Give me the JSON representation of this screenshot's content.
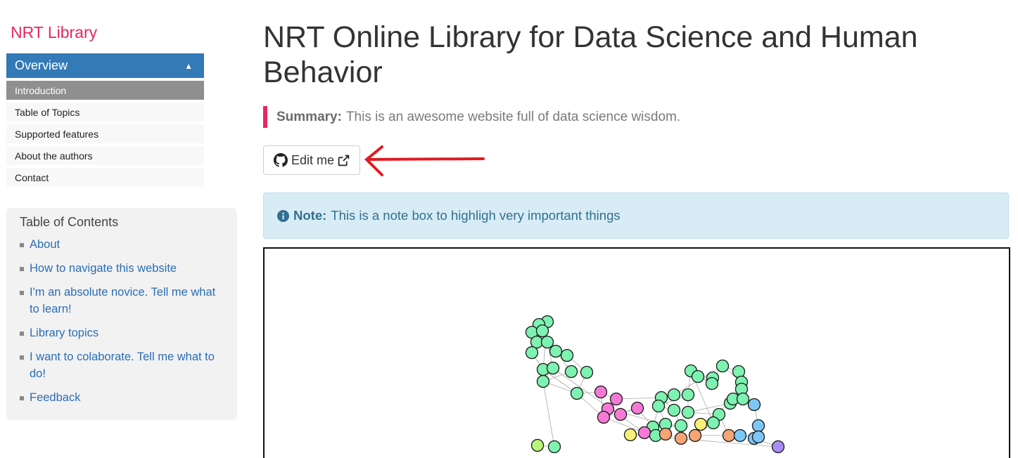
{
  "sidebar": {
    "brand": "NRT Library",
    "section": {
      "label": "Overview",
      "toggle_icon": "triangle-up-icon"
    },
    "items": [
      {
        "label": "Introduction",
        "active": true
      },
      {
        "label": "Table of Topics",
        "active": false
      },
      {
        "label": "Supported features",
        "active": false
      },
      {
        "label": "About the authors",
        "active": false
      },
      {
        "label": "Contact",
        "active": false
      }
    ]
  },
  "toc": {
    "title": "Table of Contents",
    "items": [
      "About",
      "How to navigate this website",
      "I'm an absolute novice. Tell me what to learn!",
      "Library topics",
      "I want to colaborate. Tell me what to do!",
      "Feedback"
    ]
  },
  "main": {
    "title": "NRT Online Library for Data Science and Human Behavior",
    "summary_label": "Summary:",
    "summary_text": "This is an awesome website full of data science wisdom.",
    "edit_button": {
      "label": "Edit me",
      "icons": [
        "github-icon",
        "external-link-icon"
      ]
    },
    "note_label": "Note:",
    "note_text": "This is a note box to highligh very important things",
    "note_icon": "info-circle-icon"
  },
  "colors": {
    "brand": "#e8265f",
    "nav_active": "#337ab7",
    "link": "#2a6db5",
    "note_bg": "#d8ecf6",
    "annotation_arrow": "#e01b22",
    "network_nodes": [
      "#7ef2b0",
      "#f57ad6",
      "#f6a577",
      "#f7ef77",
      "#7cc7f5",
      "#a88cf5",
      "#b8f57a"
    ]
  }
}
